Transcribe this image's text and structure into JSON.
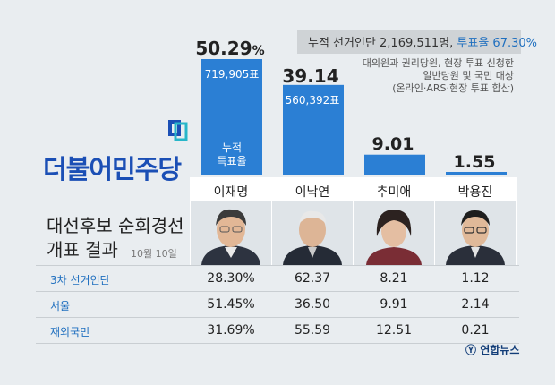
{
  "header": {
    "cumulative_voters": "누적 선거인단 2,169,511명,",
    "turnout": "투표율 67.30%",
    "note_lines": [
      "대의원과 권리당원, 현장 투표 신청한",
      "일반당원 및 국민 대상",
      "(온라인·ARS·현장 투표 합산)"
    ]
  },
  "party_name": "더불어민주당",
  "title_lines": [
    "대선후보 순회경선",
    "개표 결과"
  ],
  "date": "10월 10일",
  "cumulative_label_lines": [
    "누적",
    "득표율"
  ],
  "candidates": [
    {
      "name": "이재명",
      "pct_main": "50.29",
      "pct_unit": "%",
      "votes": "719,905표"
    },
    {
      "name": "이낙연",
      "pct_main": "39.14",
      "pct_unit": "",
      "votes": "560,392표"
    },
    {
      "name": "추미애",
      "pct_main": "9.01",
      "pct_unit": "",
      "votes": ""
    },
    {
      "name": "박용진",
      "pct_main": "1.55",
      "pct_unit": "",
      "votes": ""
    }
  ],
  "table": [
    {
      "label": "3차 선거인단",
      "values": [
        "28.30%",
        "62.37",
        "8.21",
        "1.12"
      ]
    },
    {
      "label": "서울",
      "values": [
        "51.45%",
        "36.50",
        "9.91",
        "2.14"
      ]
    },
    {
      "label": "재외국민",
      "values": [
        "31.69%",
        "55.59",
        "12.51",
        "0.21"
      ]
    }
  ],
  "source": "연합뉴스",
  "colors": {
    "bar": "#2b7fd4",
    "party": "#1b4fb5",
    "accent": "#1f6fbf"
  },
  "chart_data": {
    "type": "bar",
    "categories": [
      "이재명",
      "이낙연",
      "추미애",
      "박용진"
    ],
    "values": [
      50.29,
      39.14,
      9.01,
      1.55
    ],
    "ylim": [
      0,
      50.29
    ]
  }
}
